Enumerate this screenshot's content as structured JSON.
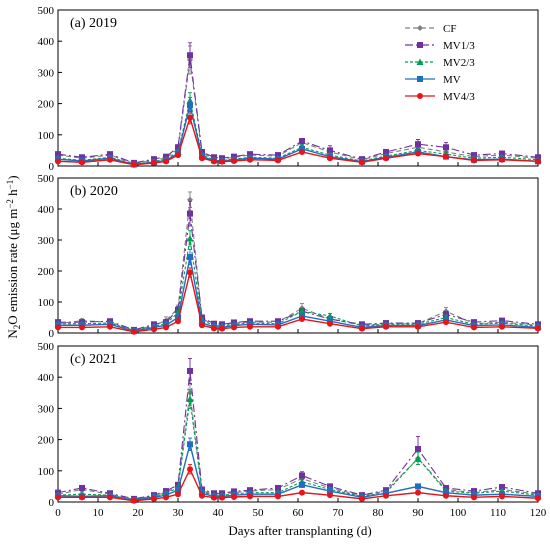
{
  "figure": {
    "ylabel_parts": [
      "N",
      "2",
      "O emission rate (μg m",
      "−2",
      " h",
      "−1",
      ")"
    ],
    "xlabel": "Days after transplanting (d)"
  },
  "chart_data": {
    "type": "line",
    "x": [
      0,
      6,
      13,
      19,
      24,
      27,
      30,
      33,
      36,
      39,
      41,
      44,
      48,
      55,
      61,
      68,
      76,
      82,
      90,
      97,
      104,
      111,
      120
    ],
    "xlim": [
      0,
      120
    ],
    "xticks": [
      0,
      10,
      20,
      30,
      40,
      50,
      60,
      70,
      80,
      90,
      100,
      110,
      120
    ],
    "ylim": [
      0,
      500
    ],
    "yticks": [
      0,
      100,
      200,
      300,
      400,
      500
    ],
    "legend_placement": "top-right",
    "series_styles": [
      {
        "color": "#808080",
        "marker": "diamond",
        "dash": "5,3"
      },
      {
        "color": "#7030a0",
        "marker": "square",
        "dash": "8,3,2,3"
      },
      {
        "color": "#00a050",
        "marker": "triangle",
        "dash": "3,2"
      },
      {
        "color": "#1f6fc1",
        "marker": "square",
        "dash": ""
      },
      {
        "color": "#e8141b",
        "marker": "circle",
        "dash": ""
      }
    ],
    "legend": [
      "CF",
      "MV1/3",
      "MV2/3",
      "MV",
      "MV4/3"
    ],
    "panels": [
      {
        "label": "(a) 2019",
        "series": [
          {
            "values": [
              35,
              25,
              35,
              8,
              20,
              25,
              55,
              340,
              40,
              25,
              22,
              28,
              35,
              32,
              75,
              45,
              20,
              40,
              60,
              45,
              30,
              35,
              25
            ],
            "err": [
              5,
              4,
              5,
              2,
              4,
              5,
              8,
              45,
              8,
              5,
              4,
              5,
              5,
              5,
              10,
              8,
              4,
              8,
              25,
              10,
              5,
              6,
              4
            ]
          },
          {
            "values": [
              38,
              28,
              38,
              10,
              22,
              30,
              60,
              355,
              45,
              28,
              25,
              30,
              38,
              35,
              80,
              50,
              22,
              45,
              70,
              60,
              35,
              40,
              28
            ],
            "err": [
              5,
              4,
              5,
              2,
              4,
              5,
              8,
              40,
              8,
              5,
              4,
              5,
              5,
              5,
              8,
              15,
              4,
              8,
              15,
              15,
              5,
              6,
              4
            ]
          },
          {
            "values": [
              25,
              18,
              28,
              6,
              15,
              22,
              45,
              210,
              35,
              20,
              18,
              22,
              28,
              25,
              60,
              35,
              16,
              32,
              50,
              38,
              25,
              28,
              20
            ],
            "err": [
              4,
              3,
              4,
              2,
              3,
              4,
              6,
              25,
              6,
              4,
              3,
              4,
              4,
              4,
              8,
              6,
              3,
              5,
              8,
              6,
              4,
              5,
              3
            ]
          },
          {
            "values": [
              22,
              16,
              25,
              5,
              12,
              18,
              40,
              195,
              30,
              18,
              16,
              20,
              25,
              22,
              55,
              30,
              14,
              28,
              45,
              30,
              20,
              22,
              15
            ],
            "err": [
              3,
              3,
              4,
              1,
              3,
              4,
              6,
              25,
              6,
              4,
              3,
              4,
              4,
              4,
              8,
              5,
              3,
              5,
              8,
              6,
              4,
              4,
              3
            ]
          },
          {
            "values": [
              15,
              12,
              20,
              4,
              10,
              15,
              35,
              155,
              25,
              15,
              14,
              16,
              20,
              18,
              45,
              25,
              12,
              25,
              40,
              30,
              18,
              20,
              15
            ],
            "err": [
              3,
              2,
              3,
              1,
              2,
              3,
              5,
              20,
              5,
              3,
              2,
              3,
              3,
              3,
              6,
              4,
              2,
              4,
              6,
              5,
              3,
              3,
              3
            ]
          }
        ]
      },
      {
        "label": "(b) 2020",
        "series": [
          {
            "values": [
              30,
              40,
              35,
              8,
              25,
              40,
              80,
              430,
              45,
              28,
              25,
              32,
              35,
              35,
              80,
              45,
              25,
              30,
              30,
              70,
              30,
              35,
              25
            ],
            "err": [
              5,
              6,
              5,
              2,
              5,
              12,
              10,
              25,
              8,
              5,
              4,
              5,
              5,
              5,
              15,
              8,
              4,
              5,
              5,
              12,
              6,
              6,
              4
            ]
          },
          {
            "values": [
              35,
              35,
              38,
              10,
              28,
              35,
              75,
              385,
              50,
              30,
              28,
              34,
              38,
              38,
              70,
              45,
              28,
              32,
              32,
              60,
              35,
              40,
              28
            ],
            "err": [
              5,
              5,
              5,
              2,
              5,
              8,
              10,
              40,
              8,
              5,
              4,
              5,
              5,
              5,
              10,
              8,
              4,
              5,
              5,
              10,
              6,
              6,
              4
            ]
          },
          {
            "values": [
              30,
              30,
              32,
              8,
              22,
              30,
              65,
              305,
              40,
              25,
              22,
              28,
              32,
              30,
              70,
              55,
              22,
              28,
              28,
              50,
              28,
              32,
              22
            ],
            "err": [
              4,
              4,
              4,
              2,
              4,
              6,
              8,
              25,
              6,
              4,
              4,
              4,
              4,
              4,
              8,
              8,
              4,
              4,
              4,
              8,
              4,
              5,
              4
            ]
          },
          {
            "values": [
              25,
              25,
              28,
              6,
              18,
              25,
              50,
              245,
              32,
              20,
              18,
              24,
              28,
              26,
              55,
              38,
              18,
              24,
              24,
              42,
              24,
              26,
              18
            ],
            "err": [
              4,
              4,
              4,
              2,
              3,
              5,
              6,
              25,
              6,
              4,
              3,
              4,
              4,
              4,
              8,
              6,
              3,
              4,
              4,
              6,
              4,
              4,
              3
            ]
          },
          {
            "values": [
              18,
              18,
              20,
              4,
              12,
              18,
              38,
              195,
              25,
              15,
              14,
              18,
              20,
              20,
              45,
              30,
              14,
              20,
              20,
              35,
              18,
              20,
              15
            ],
            "err": [
              3,
              3,
              3,
              1,
              2,
              3,
              5,
              15,
              5,
              3,
              2,
              3,
              3,
              3,
              6,
              5,
              2,
              3,
              3,
              5,
              3,
              3,
              3
            ]
          }
        ]
      },
      {
        "label": "(c) 2021",
        "series": [
          {
            "values": [
              25,
              40,
              25,
              8,
              20,
              30,
              50,
              350,
              35,
              25,
              25,
              30,
              35,
              40,
              75,
              45,
              20,
              35,
              140,
              40,
              30,
              40,
              25
            ],
            "err": [
              4,
              6,
              4,
              2,
              4,
              6,
              8,
              40,
              6,
              5,
              4,
              5,
              5,
              5,
              10,
              8,
              4,
              6,
              20,
              6,
              5,
              6,
              4
            ]
          },
          {
            "values": [
              30,
              45,
              28,
              10,
              22,
              35,
              55,
              420,
              40,
              28,
              28,
              34,
              38,
              45,
              85,
              50,
              22,
              38,
              170,
              45,
              35,
              48,
              28
            ],
            "err": [
              4,
              6,
              4,
              2,
              4,
              6,
              8,
              40,
              6,
              5,
              4,
              5,
              5,
              5,
              12,
              8,
              4,
              6,
              40,
              6,
              5,
              6,
              4
            ]
          },
          {
            "values": [
              22,
              25,
              22,
              7,
              18,
              28,
              45,
              330,
              32,
              22,
              22,
              26,
              30,
              30,
              65,
              40,
              18,
              30,
              140,
              35,
              28,
              35,
              22
            ],
            "err": [
              4,
              4,
              4,
              2,
              3,
              5,
              6,
              30,
              6,
              4,
              4,
              4,
              4,
              4,
              8,
              6,
              3,
              5,
              20,
              6,
              4,
              5,
              4
            ]
          },
          {
            "values": [
              20,
              18,
              20,
              6,
              15,
              22,
              38,
              185,
              28,
              18,
              18,
              22,
              25,
              25,
              55,
              35,
              15,
              28,
              50,
              30,
              22,
              25,
              18
            ],
            "err": [
              3,
              3,
              3,
              2,
              3,
              4,
              6,
              20,
              5,
              4,
              3,
              4,
              4,
              4,
              8,
              5,
              3,
              4,
              8,
              5,
              4,
              4,
              3
            ]
          },
          {
            "values": [
              15,
              15,
              15,
              4,
              10,
              15,
              25,
              105,
              20,
              14,
              14,
              16,
              18,
              18,
              30,
              22,
              10,
              20,
              30,
              20,
              15,
              18,
              12
            ],
            "err": [
              3,
              2,
              3,
              1,
              2,
              3,
              4,
              15,
              4,
              3,
              2,
              3,
              3,
              3,
              5,
              4,
              2,
              3,
              5,
              4,
              3,
              3,
              2
            ]
          }
        ]
      }
    ]
  }
}
